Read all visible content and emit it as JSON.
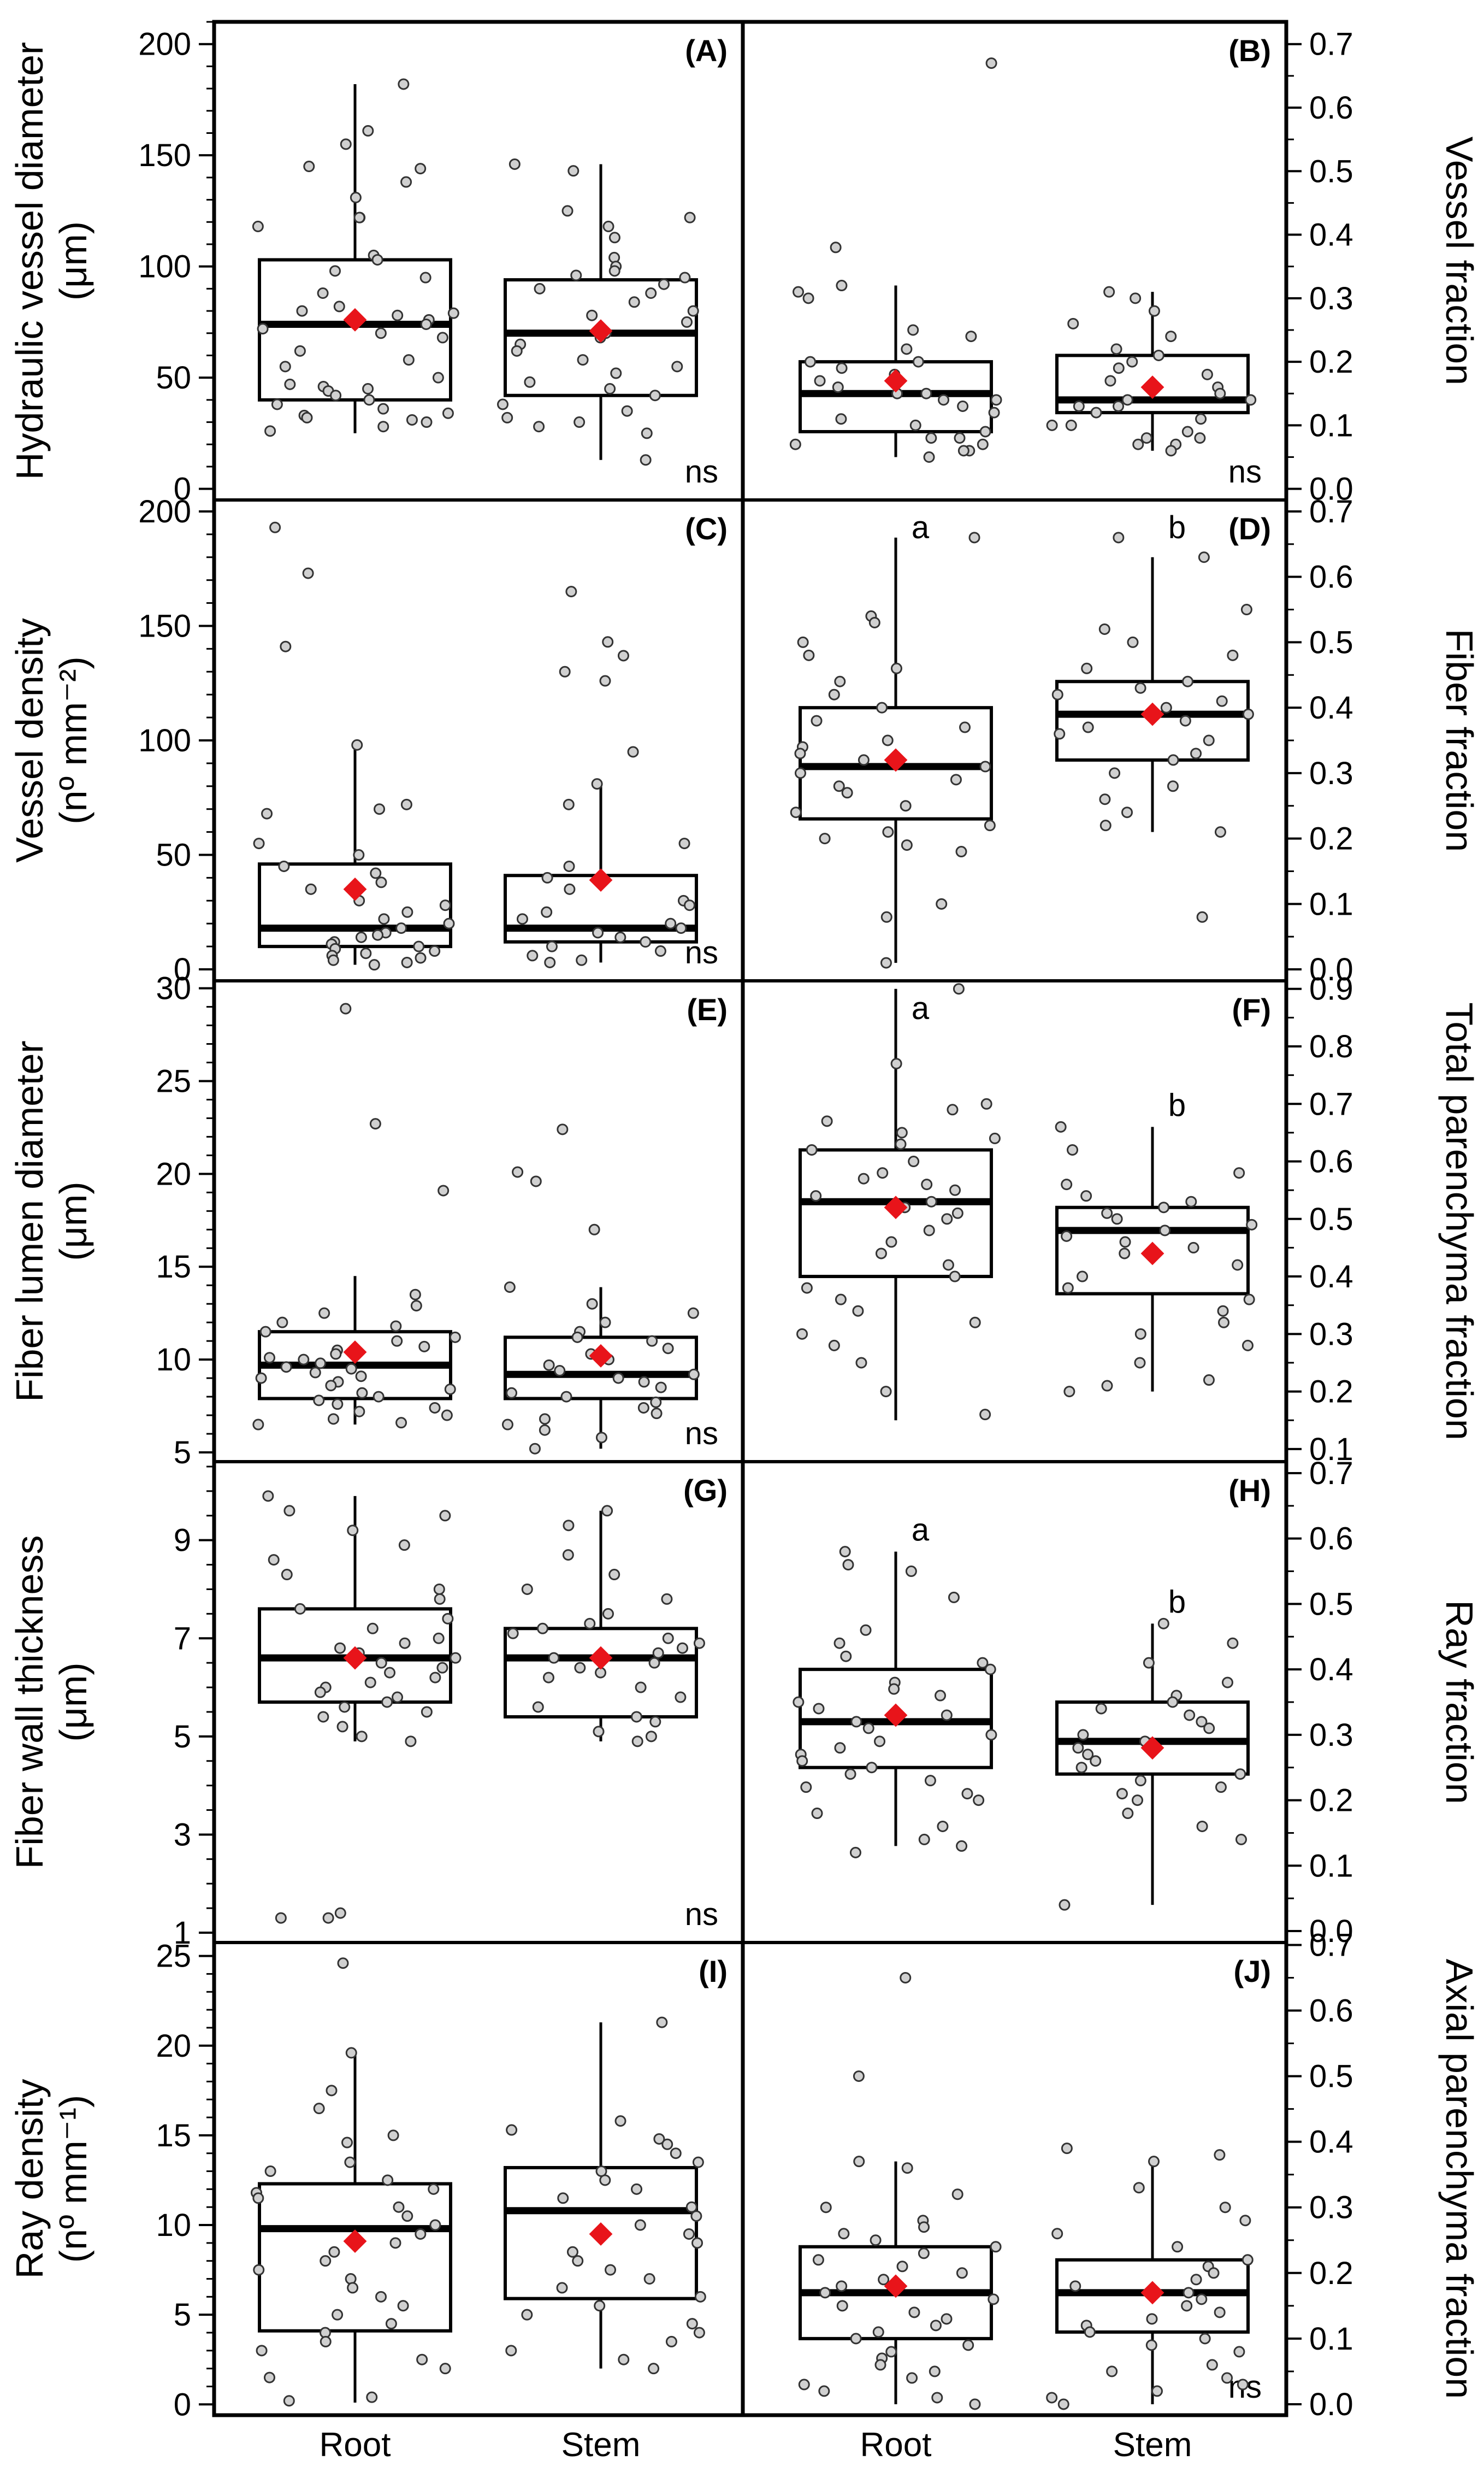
{
  "figure": {
    "x_categories": [
      "Root",
      "Stem"
    ]
  },
  "chart_data": [
    {
      "type": "box",
      "panel": "(A)",
      "side": "left",
      "row": 0,
      "ylabel_lines": [
        "Hydraulic vessel diameter",
        "(μm)"
      ],
      "ylim": [
        -5,
        210
      ],
      "ticks": [
        0,
        50,
        100,
        150,
        200
      ],
      "minor_step": 10,
      "significance": "ns",
      "letters": [],
      "boxes": [
        {
          "category": "Root",
          "whisker_low": 25,
          "q1": 40,
          "median": 74,
          "q3": 103,
          "whisker_high": 182,
          "mean": 76,
          "points": [
            182,
            161,
            155,
            145,
            144,
            138,
            131,
            122,
            122,
            118,
            105,
            103,
            98,
            95,
            88,
            82,
            80,
            79,
            78,
            76,
            74,
            72,
            70,
            68,
            62,
            58,
            55,
            50,
            47,
            46,
            45,
            44,
            42,
            40,
            38,
            36,
            34,
            33,
            32,
            31,
            30,
            28,
            26
          ]
        },
        {
          "category": "Stem",
          "whisker_low": 13,
          "q1": 42,
          "median": 70,
          "q3": 94,
          "whisker_high": 146,
          "mean": 71,
          "points": [
            146,
            143,
            125,
            122,
            118,
            113,
            104,
            100,
            98,
            96,
            95,
            92,
            90,
            88,
            84,
            80,
            78,
            75,
            72,
            70,
            68,
            65,
            62,
            58,
            55,
            52,
            48,
            45,
            42,
            38,
            35,
            32,
            30,
            28,
            25,
            13
          ]
        }
      ]
    },
    {
      "type": "box",
      "panel": "(B)",
      "side": "right",
      "row": 0,
      "ylabel_lines": [
        "Vessel fraction"
      ],
      "ylim": [
        -0.0175,
        0.735
      ],
      "ticks": [
        0.0,
        0.1,
        0.2,
        0.3,
        0.4,
        0.5,
        0.6,
        0.7
      ],
      "minor_step": 0.05,
      "significance": "ns",
      "letters": [],
      "boxes": [
        {
          "category": "Root",
          "whisker_low": 0.05,
          "q1": 0.09,
          "median": 0.15,
          "q3": 0.2,
          "whisker_high": 0.32,
          "mean": 0.17,
          "points": [
            0.67,
            0.38,
            0.32,
            0.31,
            0.3,
            0.25,
            0.24,
            0.22,
            0.2,
            0.2,
            0.19,
            0.18,
            0.17,
            0.16,
            0.15,
            0.15,
            0.14,
            0.14,
            0.13,
            0.12,
            0.11,
            0.1,
            0.09,
            0.08,
            0.08,
            0.07,
            0.07,
            0.06,
            0.06,
            0.05
          ]
        },
        {
          "category": "Stem",
          "whisker_low": 0.06,
          "q1": 0.12,
          "median": 0.14,
          "q3": 0.21,
          "whisker_high": 0.31,
          "mean": 0.16,
          "points": [
            0.31,
            0.3,
            0.28,
            0.26,
            0.24,
            0.22,
            0.21,
            0.2,
            0.19,
            0.18,
            0.17,
            0.16,
            0.15,
            0.14,
            0.14,
            0.13,
            0.13,
            0.12,
            0.11,
            0.1,
            0.1,
            0.09,
            0.08,
            0.08,
            0.07,
            0.07,
            0.06
          ]
        }
      ]
    },
    {
      "type": "box",
      "panel": "(C)",
      "side": "left",
      "row": 1,
      "ylabel_lines": [
        "Vessel density",
        "(nº mm⁻²)"
      ],
      "ylim": [
        -5,
        205
      ],
      "ticks": [
        0,
        50,
        100,
        150,
        200
      ],
      "minor_step": 10,
      "significance": "ns",
      "letters": [],
      "boxes": [
        {
          "category": "Root",
          "whisker_low": 2,
          "q1": 10,
          "median": 18,
          "q3": 46,
          "whisker_high": 97,
          "mean": 35,
          "points": [
            193,
            173,
            141,
            98,
            72,
            70,
            68,
            55,
            50,
            45,
            42,
            38,
            35,
            30,
            28,
            25,
            22,
            20,
            18,
            16,
            15,
            14,
            12,
            11,
            10,
            9,
            8,
            7,
            6,
            5,
            4,
            3,
            2
          ]
        },
        {
          "category": "Stem",
          "whisker_low": 3,
          "q1": 12,
          "median": 18,
          "q3": 41,
          "whisker_high": 81,
          "mean": 39,
          "points": [
            165,
            143,
            137,
            130,
            126,
            95,
            81,
            72,
            55,
            45,
            40,
            35,
            30,
            28,
            25,
            22,
            20,
            18,
            16,
            14,
            12,
            10,
            8,
            6,
            4,
            3
          ]
        }
      ]
    },
    {
      "type": "box",
      "panel": "(D)",
      "side": "right",
      "row": 1,
      "ylabel_lines": [
        "Fiber fraction"
      ],
      "ylim": [
        -0.0175,
        0.7175
      ],
      "ticks": [
        0.0,
        0.1,
        0.2,
        0.3,
        0.4,
        0.5,
        0.6,
        0.7
      ],
      "minor_step": 0.05,
      "significance": "",
      "letters": [
        "a",
        "b"
      ],
      "boxes": [
        {
          "category": "Root",
          "whisker_low": 0.01,
          "q1": 0.23,
          "median": 0.31,
          "q3": 0.4,
          "whisker_high": 0.66,
          "mean": 0.32,
          "points": [
            0.66,
            0.54,
            0.53,
            0.5,
            0.48,
            0.46,
            0.44,
            0.42,
            0.4,
            0.38,
            0.37,
            0.35,
            0.34,
            0.33,
            0.32,
            0.31,
            0.3,
            0.29,
            0.28,
            0.27,
            0.25,
            0.24,
            0.22,
            0.21,
            0.2,
            0.19,
            0.18,
            0.1,
            0.08,
            0.01
          ]
        },
        {
          "category": "Stem",
          "whisker_low": 0.21,
          "q1": 0.32,
          "median": 0.39,
          "q3": 0.44,
          "whisker_high": 0.63,
          "mean": 0.39,
          "points": [
            0.66,
            0.63,
            0.55,
            0.52,
            0.5,
            0.48,
            0.46,
            0.44,
            0.43,
            0.42,
            0.41,
            0.4,
            0.39,
            0.38,
            0.37,
            0.36,
            0.35,
            0.33,
            0.32,
            0.3,
            0.28,
            0.26,
            0.24,
            0.22,
            0.21,
            0.08
          ]
        }
      ]
    },
    {
      "type": "box",
      "panel": "(E)",
      "side": "left",
      "row": 2,
      "ylabel_lines": [
        "Fiber lumen diameter",
        "(μm)"
      ],
      "ylim": [
        4.5,
        30.4
      ],
      "ticks": [
        5,
        10,
        15,
        20,
        25,
        30
      ],
      "minor_step": 1,
      "significance": "ns",
      "letters": [],
      "boxes": [
        {
          "category": "Root",
          "whisker_low": 6.5,
          "q1": 7.9,
          "median": 9.7,
          "q3": 11.5,
          "whisker_high": 14.5,
          "mean": 10.4,
          "points": [
            28.9,
            22.7,
            19.1,
            13.5,
            12.9,
            12.5,
            12,
            11.8,
            11.5,
            11.2,
            11,
            10.7,
            10.5,
            10.3,
            10.1,
            10,
            9.8,
            9.6,
            9.5,
            9.3,
            9.1,
            9,
            8.8,
            8.6,
            8.4,
            8.2,
            8,
            7.8,
            7.6,
            7.4,
            7.2,
            7,
            6.8,
            6.6,
            6.5
          ]
        },
        {
          "category": "Stem",
          "whisker_low": 5.2,
          "q1": 7.9,
          "median": 9.2,
          "q3": 11.2,
          "whisker_high": 13.9,
          "mean": 10.2,
          "points": [
            22.4,
            20.1,
            19.6,
            17,
            13.9,
            13,
            12.5,
            12,
            11.5,
            11.2,
            11,
            10.6,
            10.3,
            10,
            9.7,
            9.4,
            9.2,
            9,
            8.8,
            8.5,
            8.2,
            8,
            7.7,
            7.4,
            7.1,
            6.8,
            6.5,
            6.2,
            5.8,
            5.2
          ]
        }
      ]
    },
    {
      "type": "box",
      "panel": "(F)",
      "side": "right",
      "row": 2,
      "ylabel_lines": [
        "Total parenchyma fraction"
      ],
      "ylim": [
        0.078,
        0.914
      ],
      "ticks": [
        0.1,
        0.2,
        0.3,
        0.4,
        0.5,
        0.6,
        0.7,
        0.8,
        0.9
      ],
      "minor_step": 0.05,
      "significance": "",
      "letters": [
        "a",
        "b"
      ],
      "boxes": [
        {
          "category": "Root",
          "whisker_low": 0.15,
          "q1": 0.4,
          "median": 0.53,
          "q3": 0.62,
          "whisker_high": 0.9,
          "mean": 0.52,
          "points": [
            0.9,
            0.77,
            0.7,
            0.69,
            0.67,
            0.65,
            0.64,
            0.63,
            0.62,
            0.6,
            0.58,
            0.57,
            0.56,
            0.55,
            0.54,
            0.53,
            0.52,
            0.51,
            0.5,
            0.48,
            0.46,
            0.44,
            0.42,
            0.4,
            0.38,
            0.36,
            0.34,
            0.32,
            0.3,
            0.28,
            0.25,
            0.2,
            0.16
          ]
        },
        {
          "category": "Stem",
          "whisker_low": 0.2,
          "q1": 0.37,
          "median": 0.48,
          "q3": 0.52,
          "whisker_high": 0.66,
          "mean": 0.44,
          "points": [
            0.66,
            0.62,
            0.58,
            0.56,
            0.54,
            0.53,
            0.52,
            0.51,
            0.5,
            0.49,
            0.48,
            0.47,
            0.46,
            0.45,
            0.44,
            0.42,
            0.4,
            0.38,
            0.36,
            0.34,
            0.32,
            0.3,
            0.28,
            0.25,
            0.22,
            0.21,
            0.2
          ]
        }
      ]
    },
    {
      "type": "box",
      "panel": "(G)",
      "side": "left",
      "row": 3,
      "ylabel_lines": [
        "Fiber wall thickness",
        "(μm)"
      ],
      "ylim": [
        0.8,
        10.6
      ],
      "ticks": [
        1,
        3,
        5,
        7,
        9
      ],
      "minor_step": 0.5,
      "significance": "ns",
      "letters": [],
      "boxes": [
        {
          "category": "Root",
          "whisker_low": 4.9,
          "q1": 5.7,
          "median": 6.6,
          "q3": 7.6,
          "whisker_high": 9.9,
          "mean": 6.6,
          "points": [
            9.9,
            9.6,
            9.5,
            9.2,
            8.9,
            8.6,
            8.3,
            8,
            7.8,
            7.6,
            7.4,
            7.2,
            7,
            6.9,
            6.8,
            6.7,
            6.6,
            6.5,
            6.4,
            6.3,
            6.2,
            6.1,
            6,
            5.9,
            5.8,
            5.7,
            5.6,
            5.5,
            5.4,
            5.2,
            5,
            4.9,
            1.4,
            1.3,
            1.3
          ]
        },
        {
          "category": "Stem",
          "whisker_low": 4.9,
          "q1": 5.4,
          "median": 6.6,
          "q3": 7.2,
          "whisker_high": 9.6,
          "mean": 6.6,
          "points": [
            9.6,
            9.3,
            8.7,
            8.3,
            8,
            7.8,
            7.5,
            7.3,
            7.2,
            7.1,
            7,
            6.9,
            6.8,
            6.7,
            6.6,
            6.5,
            6.4,
            6.3,
            6.2,
            6,
            5.8,
            5.6,
            5.4,
            5.3,
            5.1,
            5,
            4.9
          ]
        }
      ]
    },
    {
      "type": "box",
      "panel": "(H)",
      "side": "right",
      "row": 3,
      "ylabel_lines": [
        "Ray fraction"
      ],
      "ylim": [
        -0.0175,
        0.7175
      ],
      "ticks": [
        0.0,
        0.1,
        0.2,
        0.3,
        0.4,
        0.5,
        0.6,
        0.7
      ],
      "minor_step": 0.05,
      "significance": "",
      "letters": [
        "a",
        "b"
      ],
      "boxes": [
        {
          "category": "Root",
          "whisker_low": 0.13,
          "q1": 0.25,
          "median": 0.32,
          "q3": 0.4,
          "whisker_high": 0.58,
          "mean": 0.33,
          "points": [
            0.58,
            0.56,
            0.55,
            0.51,
            0.46,
            0.44,
            0.42,
            0.41,
            0.4,
            0.38,
            0.37,
            0.36,
            0.35,
            0.34,
            0.33,
            0.32,
            0.31,
            0.3,
            0.29,
            0.28,
            0.27,
            0.26,
            0.25,
            0.24,
            0.23,
            0.22,
            0.21,
            0.2,
            0.18,
            0.16,
            0.14,
            0.13,
            0.12
          ]
        },
        {
          "category": "Stem",
          "whisker_low": 0.04,
          "q1": 0.24,
          "median": 0.29,
          "q3": 0.35,
          "whisker_high": 0.47,
          "mean": 0.28,
          "points": [
            0.47,
            0.44,
            0.41,
            0.38,
            0.36,
            0.35,
            0.34,
            0.33,
            0.32,
            0.31,
            0.3,
            0.29,
            0.28,
            0.27,
            0.26,
            0.25,
            0.24,
            0.23,
            0.22,
            0.21,
            0.2,
            0.18,
            0.16,
            0.14,
            0.04
          ]
        }
      ]
    },
    {
      "type": "box",
      "panel": "(I)",
      "side": "left",
      "row": 4,
      "ylabel_lines": [
        "Ray density",
        "(nº mm⁻¹)"
      ],
      "ylim": [
        -0.6,
        25.75
      ],
      "ticks": [
        0,
        5,
        10,
        15,
        20,
        25
      ],
      "minor_step": 1,
      "significance": "",
      "letters": [],
      "boxes": [
        {
          "category": "Root",
          "whisker_low": 0.1,
          "q1": 4.1,
          "median": 9.8,
          "q3": 12.3,
          "whisker_high": 19.5,
          "mean": 9.1,
          "points": [
            24.6,
            19.6,
            17.5,
            16.5,
            15,
            14.6,
            13.5,
            13,
            12.5,
            12,
            11.8,
            11.5,
            11,
            10.5,
            10,
            9.5,
            9,
            8.5,
            8,
            7.5,
            7,
            6.5,
            6,
            5.5,
            5,
            4.5,
            4,
            3.5,
            3,
            2.5,
            2,
            1.5,
            0.4,
            0.2
          ]
        },
        {
          "category": "Stem",
          "whisker_low": 2,
          "q1": 5.9,
          "median": 10.8,
          "q3": 13.2,
          "whisker_high": 21.3,
          "mean": 9.5,
          "points": [
            21.3,
            15.8,
            15.3,
            14.8,
            14.5,
            14,
            13.5,
            13,
            12.5,
            12,
            11.5,
            11,
            10.5,
            10,
            9.5,
            9,
            8.5,
            8,
            7.5,
            7,
            6.5,
            6,
            5.5,
            5,
            4.5,
            4,
            3.5,
            3,
            2.5,
            2
          ]
        }
      ]
    },
    {
      "type": "box",
      "panel": "(J)",
      "side": "right",
      "row": 4,
      "ylabel_lines": [
        "Axial parenchyma fraction"
      ],
      "ylim": [
        -0.0167,
        0.7037
      ],
      "ticks": [
        0.0,
        0.1,
        0.2,
        0.3,
        0.4,
        0.5,
        0.6,
        0.7
      ],
      "minor_step": 0.05,
      "significance": "ns",
      "letters": [],
      "boxes": [
        {
          "category": "Root",
          "whisker_low": 0.0,
          "q1": 0.1,
          "median": 0.17,
          "q3": 0.24,
          "whisker_high": 0.37,
          "mean": 0.18,
          "points": [
            0.65,
            0.5,
            0.37,
            0.36,
            0.32,
            0.3,
            0.28,
            0.27,
            0.26,
            0.25,
            0.24,
            0.23,
            0.22,
            0.21,
            0.2,
            0.19,
            0.18,
            0.17,
            0.16,
            0.15,
            0.14,
            0.13,
            0.12,
            0.11,
            0.1,
            0.09,
            0.08,
            0.07,
            0.06,
            0.05,
            0.04,
            0.03,
            0.02,
            0.01,
            0.0
          ]
        },
        {
          "category": "Stem",
          "whisker_low": 0.0,
          "q1": 0.11,
          "median": 0.17,
          "q3": 0.22,
          "whisker_high": 0.37,
          "mean": 0.17,
          "points": [
            0.39,
            0.38,
            0.37,
            0.33,
            0.3,
            0.28,
            0.26,
            0.24,
            0.22,
            0.21,
            0.2,
            0.19,
            0.18,
            0.17,
            0.16,
            0.15,
            0.14,
            0.13,
            0.12,
            0.11,
            0.1,
            0.09,
            0.08,
            0.06,
            0.05,
            0.04,
            0.03,
            0.02,
            0.01,
            0.0
          ]
        }
      ]
    }
  ]
}
